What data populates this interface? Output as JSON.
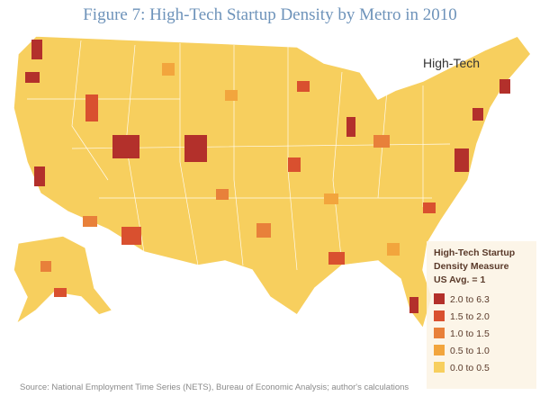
{
  "title": "Figure 7: High-Tech Startup Density by Metro in 2010",
  "map_label": "High-Tech",
  "legend": {
    "title": [
      "High-Tech Startup",
      "Density Measure",
      "US Avg. = 1"
    ],
    "items": [
      {
        "label": "2.0 to 6.3",
        "color": "#b3302b"
      },
      {
        "label": "1.5 to 2.0",
        "color": "#d9502f"
      },
      {
        "label": "1.0 to 1.5",
        "color": "#e8803a"
      },
      {
        "label": "0.5 to 1.0",
        "color": "#f2a53d"
      },
      {
        "label": "0.0 to 0.5",
        "color": "#f7cf5e"
      }
    ]
  },
  "source": "Source: National Employment Time Series (NETS), Bureau of Economic Analysis; author's calculations"
}
